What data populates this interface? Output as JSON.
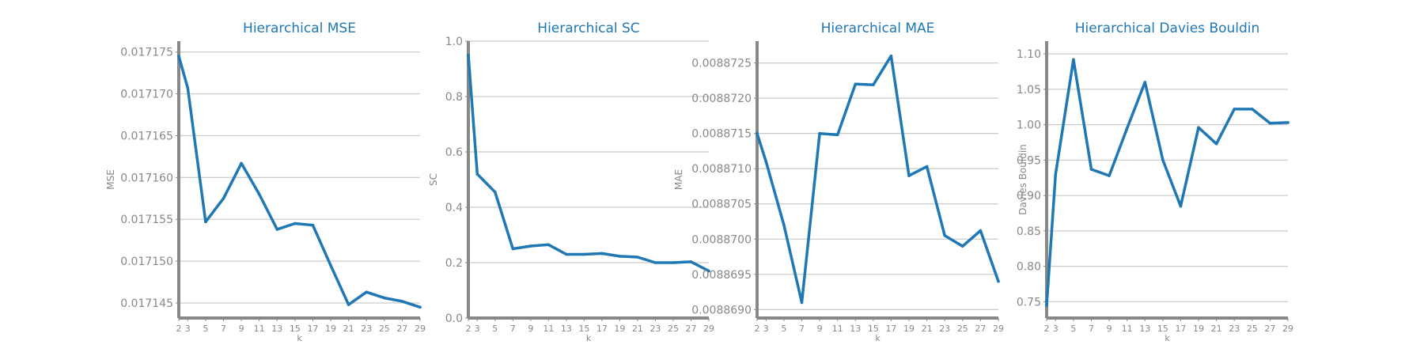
{
  "colors": {
    "line": "#1f77b4",
    "title": "#1f77b4",
    "axis": "#888888",
    "grid": "#cccccc",
    "tick_label": "#888888"
  },
  "chart_data": [
    {
      "type": "line",
      "title": "Hierarchical MSE",
      "xlabel": "k",
      "ylabel": "MSE",
      "x": [
        2,
        3,
        5,
        7,
        9,
        11,
        13,
        15,
        17,
        19,
        21,
        23,
        25,
        27,
        29
      ],
      "values": [
        0.0171745,
        0.0171707,
        0.0171547,
        0.0171575,
        0.0171617,
        0.017158,
        0.0171538,
        0.0171545,
        0.0171543,
        0.0171495,
        0.0171448,
        0.0171463,
        0.0171456,
        0.0171452,
        0.0171445
      ],
      "xticks": [
        "2",
        "3",
        "5",
        "7",
        "9",
        "11",
        "13",
        "15",
        "17",
        "19",
        "21",
        "23",
        "25",
        "27",
        "29"
      ],
      "yticks": [
        0.017145,
        0.01715,
        0.017155,
        0.01716,
        0.017165,
        0.01717,
        0.017175
      ],
      "ytick_labels": [
        "0.017145",
        "0.017150",
        "0.017155",
        "0.017160",
        "0.017165",
        "0.017170",
        "0.017175"
      ],
      "xlim": [
        2,
        29
      ],
      "ylim": [
        0.0171432,
        0.0171763
      ],
      "grid": "horizontal"
    },
    {
      "type": "line",
      "title": "Hierarchical SC",
      "xlabel": "k",
      "ylabel": "SC",
      "x": [
        2,
        3,
        5,
        7,
        9,
        11,
        13,
        15,
        17,
        19,
        21,
        23,
        25,
        27,
        29
      ],
      "values": [
        0.95,
        0.52,
        0.455,
        0.25,
        0.26,
        0.265,
        0.23,
        0.23,
        0.233,
        0.223,
        0.22,
        0.2,
        0.2,
        0.203,
        0.17
      ],
      "xticks": [
        "2",
        "3",
        "5",
        "7",
        "9",
        "11",
        "13",
        "15",
        "17",
        "19",
        "21",
        "23",
        "25",
        "27",
        "29"
      ],
      "yticks": [
        0.0,
        0.2,
        0.4,
        0.6,
        0.8,
        1.0
      ],
      "ytick_labels": [
        "0.0",
        "0.2",
        "0.4",
        "0.6",
        "0.8",
        "1.0"
      ],
      "xlim": [
        2,
        29
      ],
      "ylim": [
        0,
        1.0
      ],
      "grid": "horizontal"
    },
    {
      "type": "line",
      "title": "Hierarchical MAE",
      "xlabel": "k",
      "ylabel": "MAE",
      "x": [
        2,
        3,
        5,
        7,
        9,
        11,
        13,
        15,
        17,
        19,
        21,
        23,
        25,
        27,
        29
      ],
      "values": [
        0.0088715,
        0.0088711,
        0.0088702,
        0.0088691,
        0.0088715,
        0.00887148,
        0.0088722,
        0.00887219,
        0.0088726,
        0.0088709,
        0.00887103,
        0.00887005,
        0.0088699,
        0.00887012,
        0.0088694
      ],
      "xticks": [
        "2",
        "3",
        "5",
        "7",
        "9",
        "11",
        "13",
        "15",
        "17",
        "19",
        "21",
        "23",
        "25",
        "27",
        "29"
      ],
      "yticks": [
        0.008869,
        0.0088695,
        0.00887,
        0.0088705,
        0.008871,
        0.0088715,
        0.008872,
        0.0088725
      ],
      "ytick_labels": [
        "0.0088690",
        "0.0088695",
        "0.0088700",
        "0.0088705",
        "0.0088710",
        "0.0088715",
        "0.0088720",
        "0.0088725"
      ],
      "xlim": [
        2,
        29
      ],
      "ylim": [
        0.00886888,
        0.00887281
      ],
      "grid": "horizontal"
    },
    {
      "type": "line",
      "title": "Hierarchical Davies Bouldin",
      "xlabel": "k",
      "ylabel": "Davies Bouldin",
      "x": [
        2,
        3,
        5,
        7,
        9,
        11,
        13,
        15,
        17,
        19,
        21,
        23,
        25,
        27,
        29
      ],
      "values": [
        0.745,
        0.93,
        1.092,
        0.937,
        0.928,
        0.995,
        1.06,
        0.95,
        0.885,
        0.996,
        0.973,
        1.022,
        1.022,
        1.002,
        1.003
      ],
      "xticks": [
        "2",
        "3",
        "5",
        "7",
        "9",
        "11",
        "13",
        "15",
        "17",
        "19",
        "21",
        "23",
        "25",
        "27",
        "29"
      ],
      "yticks": [
        0.75,
        0.8,
        0.85,
        0.9,
        0.95,
        1.0,
        1.05,
        1.1
      ],
      "ytick_labels": [
        "0.75",
        "0.80",
        "0.85",
        "0.90",
        "0.95",
        "1.00",
        "1.05",
        "1.10"
      ],
      "xlim": [
        2,
        29
      ],
      "ylim": [
        0.727,
        1.118
      ],
      "grid": "horizontal"
    }
  ]
}
